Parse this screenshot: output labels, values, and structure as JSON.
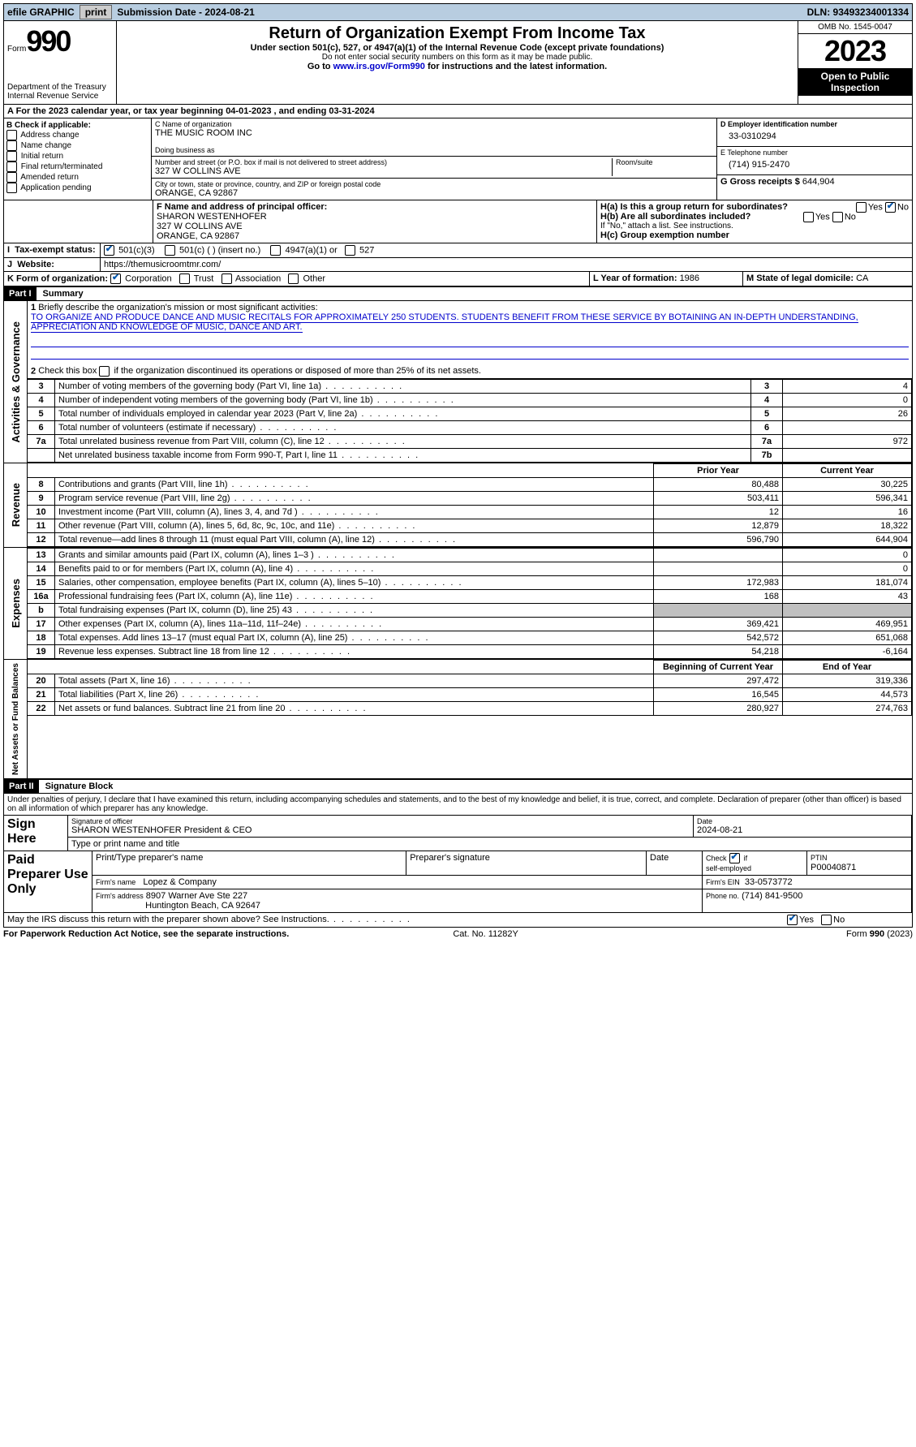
{
  "topbar": {
    "efile_label": "efile GRAPHIC",
    "print_btn": "print",
    "submission_label": "Submission Date - 2024-08-21",
    "dln": "DLN: 93493234001334"
  },
  "header": {
    "form_label": "Form",
    "form_number": "990",
    "dept": "Department of the Treasury",
    "irs": "Internal Revenue Service",
    "title": "Return of Organization Exempt From Income Tax",
    "subtitle": "Under section 501(c), 527, or 4947(a)(1) of the Internal Revenue Code (except private foundations)",
    "note1": "Do not enter social security numbers on this form as it may be made public.",
    "note2_pre": "Go to ",
    "note2_link": "www.irs.gov/Form990",
    "note2_post": " for instructions and the latest information.",
    "omb": "OMB No. 1545-0047",
    "year": "2023",
    "inspect": "Open to Public Inspection"
  },
  "period": {
    "line": "A For the 2023 calendar year, or tax year beginning 04-01-2023   , and ending 03-31-2024"
  },
  "boxB": {
    "heading": "B Check if applicable:",
    "items": [
      "Address change",
      "Name change",
      "Initial return",
      "Final return/terminated",
      "Amended return",
      "Application pending"
    ]
  },
  "boxC": {
    "name_label": "C Name of organization",
    "name": "THE MUSIC ROOM INC",
    "dba_label": "Doing business as",
    "street_label": "Number and street (or P.O. box if mail is not delivered to street address)",
    "room_label": "Room/suite",
    "street": "327 W COLLINS AVE",
    "city_label": "City or town, state or province, country, and ZIP or foreign postal code",
    "city": "ORANGE, CA  92867"
  },
  "boxD": {
    "label": "D Employer identification number",
    "value": "33-0310294"
  },
  "boxE": {
    "label": "E Telephone number",
    "value": "(714) 915-2470"
  },
  "boxG": {
    "label": "G Gross receipts $",
    "value": "644,904"
  },
  "boxF": {
    "label": "F Name and address of principal officer:",
    "name": "SHARON WESTENHOFER",
    "street": "327 W COLLINS AVE",
    "city": "ORANGE, CA  92867"
  },
  "boxH": {
    "a": "H(a)  Is this a group return for subordinates?",
    "b": "H(b)  Are all subordinates included?",
    "bnote": "If \"No,\" attach a list. See instructions.",
    "c": "H(c)  Group exemption number ",
    "yes": "Yes",
    "no": "No"
  },
  "boxI": {
    "label": "Tax-exempt status:",
    "opts": [
      "501(c)(3)",
      "501(c) (  ) (insert no.)",
      "4947(a)(1) or",
      "527"
    ]
  },
  "boxJ": {
    "label": "Website:",
    "value": "https://themusicroomtmr.com/"
  },
  "boxK": {
    "label": "K Form of organization:",
    "opts": [
      "Corporation",
      "Trust",
      "Association",
      "Other"
    ]
  },
  "boxL": {
    "label": "L Year of formation: ",
    "value": "1986"
  },
  "boxM": {
    "label": "M State of legal domicile: ",
    "value": "CA"
  },
  "partI": {
    "header": "Part I",
    "title": "Summary",
    "mission_label": "Briefly describe the organization's mission or most significant activities:",
    "mission": "TO ORGANIZE AND PRODUCE DANCE AND MUSIC RECITALS FOR APPROXIMATELY 250 STUDENTS. STUDENTS BENEFIT FROM THESE SERVICE BY BOTAINING AN IN-DEPTH UNDERSTANDING, APPRECIATION AND KNOWLEDGE OF MUSIC, DANCE AND ART.",
    "line2": "Check this box       if the organization discontinued its operations or disposed of more than 25% of its net assets.",
    "cols": {
      "prior": "Prior Year",
      "current": "Current Year",
      "begin": "Beginning of Current Year",
      "end": "End of Year"
    },
    "sections": {
      "governance": "Activities & Governance",
      "revenue": "Revenue",
      "expenses": "Expenses",
      "netassets": "Net Assets or Fund Balances"
    },
    "gov_rows": [
      {
        "n": "3",
        "t": "Number of voting members of the governing body (Part VI, line 1a)",
        "ln": "3",
        "v": "4"
      },
      {
        "n": "4",
        "t": "Number of independent voting members of the governing body (Part VI, line 1b)",
        "ln": "4",
        "v": "0"
      },
      {
        "n": "5",
        "t": "Total number of individuals employed in calendar year 2023 (Part V, line 2a)",
        "ln": "5",
        "v": "26"
      },
      {
        "n": "6",
        "t": "Total number of volunteers (estimate if necessary)",
        "ln": "6",
        "v": ""
      },
      {
        "n": "7a",
        "t": "Total unrelated business revenue from Part VIII, column (C), line 12",
        "ln": "7a",
        "v": "972"
      },
      {
        "n": "",
        "t": "Net unrelated business taxable income from Form 990-T, Part I, line 11",
        "ln": "7b",
        "v": ""
      }
    ],
    "rev_rows": [
      {
        "n": "8",
        "t": "Contributions and grants (Part VIII, line 1h)",
        "p": "80,488",
        "c": "30,225"
      },
      {
        "n": "9",
        "t": "Program service revenue (Part VIII, line 2g)",
        "p": "503,411",
        "c": "596,341"
      },
      {
        "n": "10",
        "t": "Investment income (Part VIII, column (A), lines 3, 4, and 7d )",
        "p": "12",
        "c": "16"
      },
      {
        "n": "11",
        "t": "Other revenue (Part VIII, column (A), lines 5, 6d, 8c, 9c, 10c, and 11e)",
        "p": "12,879",
        "c": "18,322"
      },
      {
        "n": "12",
        "t": "Total revenue—add lines 8 through 11 (must equal Part VIII, column (A), line 12)",
        "p": "596,790",
        "c": "644,904"
      }
    ],
    "exp_rows": [
      {
        "n": "13",
        "t": "Grants and similar amounts paid (Part IX, column (A), lines 1–3 )",
        "p": "",
        "c": "0"
      },
      {
        "n": "14",
        "t": "Benefits paid to or for members (Part IX, column (A), line 4)",
        "p": "",
        "c": "0"
      },
      {
        "n": "15",
        "t": "Salaries, other compensation, employee benefits (Part IX, column (A), lines 5–10)",
        "p": "172,983",
        "c": "181,074"
      },
      {
        "n": "16a",
        "t": "Professional fundraising fees (Part IX, column (A), line 11e)",
        "p": "168",
        "c": "43"
      },
      {
        "n": "b",
        "t": "Total fundraising expenses (Part IX, column (D), line 25) 43",
        "p": "SHADE",
        "c": "SHADE"
      },
      {
        "n": "17",
        "t": "Other expenses (Part IX, column (A), lines 11a–11d, 11f–24e)",
        "p": "369,421",
        "c": "469,951"
      },
      {
        "n": "18",
        "t": "Total expenses. Add lines 13–17 (must equal Part IX, column (A), line 25)",
        "p": "542,572",
        "c": "651,068"
      },
      {
        "n": "19",
        "t": "Revenue less expenses. Subtract line 18 from line 12",
        "p": "54,218",
        "c": "-6,164"
      }
    ],
    "net_rows": [
      {
        "n": "20",
        "t": "Total assets (Part X, line 16)",
        "p": "297,472",
        "c": "319,336"
      },
      {
        "n": "21",
        "t": "Total liabilities (Part X, line 26)",
        "p": "16,545",
        "c": "44,573"
      },
      {
        "n": "22",
        "t": "Net assets or fund balances. Subtract line 21 from line 20",
        "p": "280,927",
        "c": "274,763"
      }
    ]
  },
  "partII": {
    "header": "Part II",
    "title": "Signature Block",
    "declaration": "Under penalties of perjury, I declare that I have examined this return, including accompanying schedules and statements, and to the best of my knowledge and belief, it is true, correct, and complete. Declaration of preparer (other than officer) is based on all information of which preparer has any knowledge.",
    "sign_here": "Sign Here",
    "sig_officer": "Signature of officer",
    "officer": "SHARON WESTENHOFER  President & CEO",
    "type_name": "Type or print name and title",
    "date_label": "Date",
    "date": "2024-08-21",
    "paid": "Paid Preparer Use Only",
    "print_name": "Print/Type preparer's name",
    "prep_sig": "Preparer's signature",
    "check_if": "Check",
    "self_emp": "self-employed",
    "if": "if",
    "ptin_label": "PTIN",
    "ptin": "P00040871",
    "firm_name_label": "Firm's name",
    "firm_name": "Lopez & Company",
    "firm_ein_label": "Firm's EIN",
    "firm_ein": "33-0573772",
    "firm_addr_label": "Firm's address",
    "firm_addr1": "8907 Warner Ave Ste 227",
    "firm_addr2": "Huntington Beach, CA  92647",
    "phone_label": "Phone no.",
    "phone": "(714) 841-9500",
    "discuss": "May the IRS discuss this return with the preparer shown above? See Instructions.",
    "yes": "Yes",
    "no": "No"
  },
  "footer": {
    "left": "For Paperwork Reduction Act Notice, see the separate instructions.",
    "mid": "Cat. No. 11282Y",
    "right": "Form 990 (2023)"
  }
}
